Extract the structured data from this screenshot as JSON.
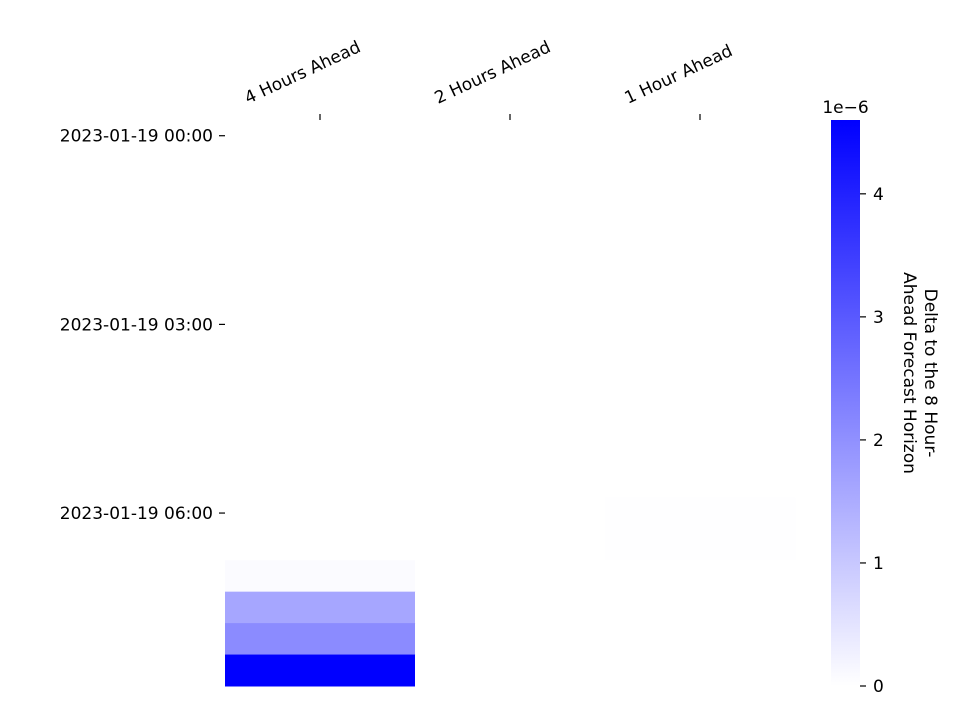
{
  "chart_data": {
    "type": "heatmap",
    "title": "",
    "columns": [
      "4 Hours Ahead",
      "2 Hours Ahead",
      "1 Hour Ahead"
    ],
    "row_count": 18,
    "row_tick_labels": [
      {
        "row": 0,
        "label": "2023-01-19 00:00"
      },
      {
        "row": 6,
        "label": "2023-01-19 03:00"
      },
      {
        "row": 12,
        "label": "2023-01-19 06:00"
      }
    ],
    "values": [
      [
        0,
        0,
        0
      ],
      [
        0,
        0,
        0
      ],
      [
        0,
        0,
        0
      ],
      [
        0,
        0,
        0
      ],
      [
        0,
        0,
        0
      ],
      [
        0,
        0,
        0
      ],
      [
        0,
        0,
        0
      ],
      [
        0,
        0,
        0
      ],
      [
        0,
        0,
        0
      ],
      [
        0,
        0,
        0
      ],
      [
        0,
        0,
        0
      ],
      [
        0,
        0,
        0
      ],
      [
        8e-09,
        4e-09,
        2e-08
      ],
      [
        8e-09,
        4e-09,
        2e-08
      ],
      [
        8e-08,
        0,
        0
      ],
      [
        1.6e-06,
        0,
        0
      ],
      [
        2.1e-06,
        0,
        0
      ],
      [
        4.6e-06,
        0,
        0
      ]
    ],
    "colorbar": {
      "label": "Delta to the 8 Hour-\nAhead Forecast Horizon",
      "min": 0,
      "max": 4.6e-06,
      "ticks": [
        0,
        1,
        2,
        3,
        4
      ],
      "tick_labels": [
        "0",
        "1",
        "2",
        "3",
        "4"
      ],
      "multiplier_label": "1e−6",
      "colormap": [
        "#ffffff",
        "#0000ff"
      ]
    }
  }
}
